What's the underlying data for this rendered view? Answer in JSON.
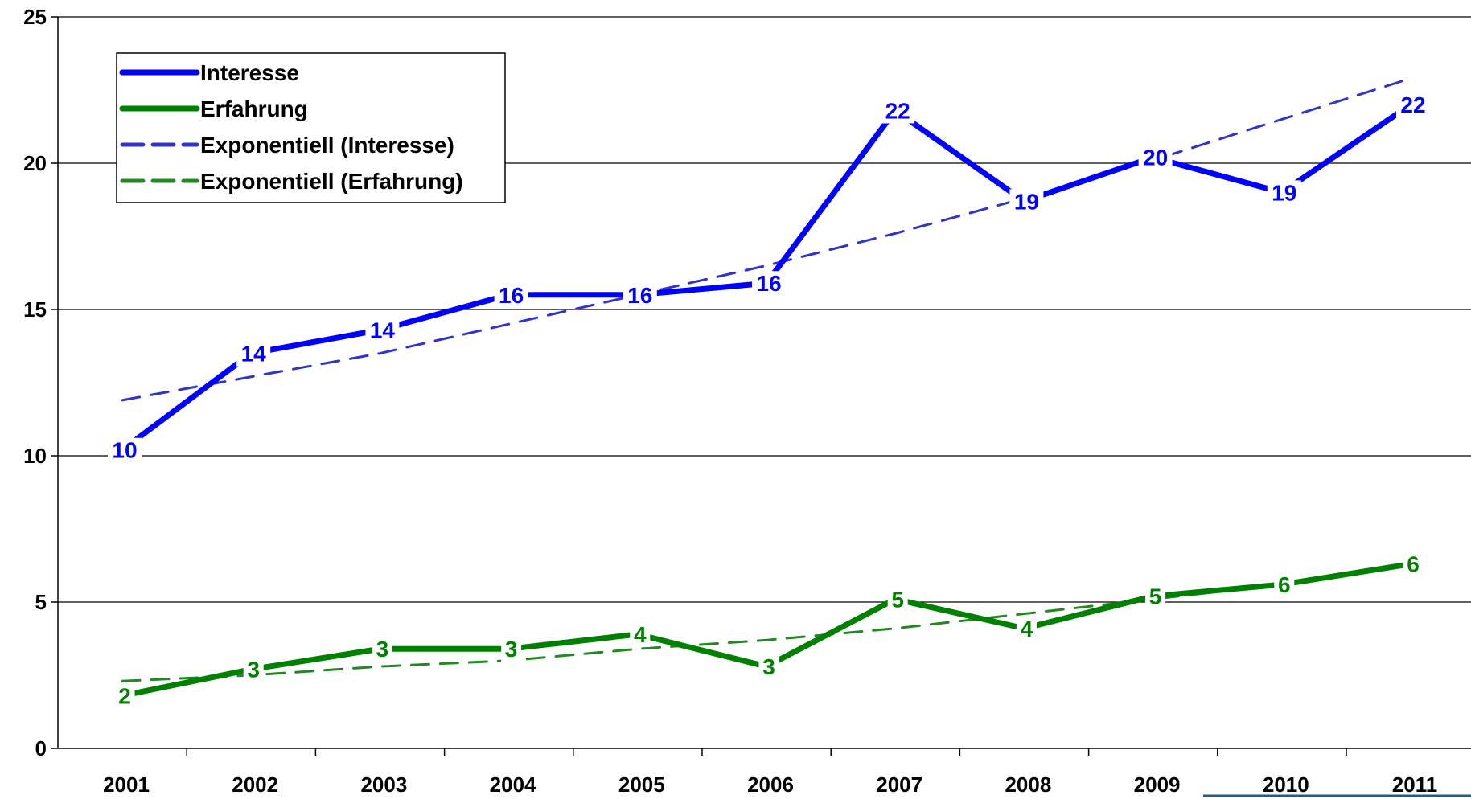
{
  "chart_data": {
    "type": "line",
    "title": "",
    "xlabel": "",
    "ylabel": "",
    "categories": [
      "2001",
      "2002",
      "2003",
      "2004",
      "2005",
      "2006",
      "2007",
      "2008",
      "2009",
      "2010",
      "2011"
    ],
    "ylim": [
      0,
      25
    ],
    "yticks": [
      "0",
      "5",
      "10",
      "15",
      "20",
      "25"
    ],
    "grid": "horizontal",
    "legend_position": "top-left",
    "series": [
      {
        "name": "Interesse",
        "style": "solid",
        "color": "#0000ff",
        "values": [
          10.2,
          13.5,
          14.3,
          15.5,
          15.5,
          15.9,
          21.8,
          18.7,
          20.2,
          19.0,
          22.0
        ],
        "labels": [
          "10",
          "14",
          "14",
          "16",
          "16",
          "16",
          "22",
          "19",
          "20",
          "19",
          "22"
        ]
      },
      {
        "name": "Erfahrung",
        "style": "solid",
        "color": "#008000",
        "values": [
          1.8,
          2.7,
          3.4,
          3.4,
          3.9,
          2.8,
          5.1,
          4.1,
          5.2,
          5.6,
          6.3
        ],
        "labels": [
          "2",
          "3",
          "3",
          "3",
          "4",
          "3",
          "5",
          "4",
          "5",
          "6",
          "6"
        ]
      },
      {
        "name": "Exponentiell (Interesse)",
        "style": "dashed",
        "color": "#3333cc",
        "values": [
          11.9,
          12.7,
          13.5,
          14.5,
          15.5,
          16.5,
          17.6,
          18.8,
          20.1,
          21.5,
          22.9
        ]
      },
      {
        "name": "Exponentiell (Erfahrung)",
        "style": "dashed",
        "color": "#228822",
        "values": [
          2.3,
          2.5,
          2.8,
          3.0,
          3.4,
          3.7,
          4.1,
          4.6,
          5.1,
          5.6,
          6.3
        ]
      }
    ]
  }
}
